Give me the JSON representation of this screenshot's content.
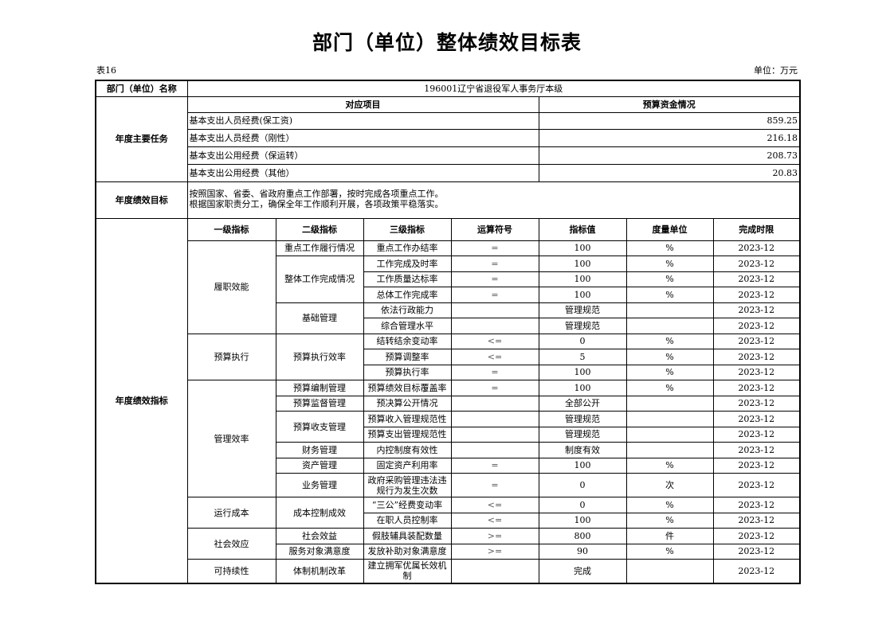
{
  "title": "部门（单位）整体绩效目标表",
  "table_no": "表16",
  "unit": "单位：万元",
  "dept": {
    "label": "部门（单位）名称",
    "value": "196001辽宁省退役军人事务厅本级"
  },
  "tasks": {
    "label": "年度主要任务",
    "col_item": "对应项目",
    "col_budget": "预算资金情况",
    "rows": [
      {
        "item": "基本支出人员经费(保工资)",
        "amount": "859.25"
      },
      {
        "item": "基本支出人员经费（刚性）",
        "amount": "216.18"
      },
      {
        "item": "基本支出公用经费（保运转）",
        "amount": "208.73"
      },
      {
        "item": "基本支出公用经费（其他）",
        "amount": "20.83"
      }
    ]
  },
  "goal": {
    "label": "年度绩效目标",
    "lines": [
      "按照国家、省委、省政府重点工作部署，按时完成各项重点工作。",
      "根据国家职责分工，确保全年工作顺利开展，各项政策平稳落实。"
    ]
  },
  "indicators": {
    "label": "年度绩效指标",
    "headers": [
      "一级指标",
      "二级指标",
      "三级指标",
      "运算符号",
      "指标值",
      "度量单位",
      "完成时限"
    ],
    "groups": [
      {
        "label": "履职效能",
        "subgroups": [
          {
            "label": "重点工作履行情况",
            "items": [
              {
                "name": "重点工作办结率",
                "op": "=",
                "value": "100",
                "unit": "%",
                "date": "2023-12"
              }
            ]
          },
          {
            "label": "整体工作完成情况",
            "items": [
              {
                "name": "工作完成及时率",
                "op": "=",
                "value": "100",
                "unit": "%",
                "date": "2023-12"
              },
              {
                "name": "工作质量达标率",
                "op": "=",
                "value": "100",
                "unit": "%",
                "date": "2023-12"
              },
              {
                "name": "总体工作完成率",
                "op": "=",
                "value": "100",
                "unit": "%",
                "date": "2023-12"
              }
            ]
          },
          {
            "label": "基础管理",
            "items": [
              {
                "name": "依法行政能力",
                "op": "",
                "value": "管理规范",
                "unit": "",
                "date": "2023-12"
              },
              {
                "name": "综合管理水平",
                "op": "",
                "value": "管理规范",
                "unit": "",
                "date": "2023-12"
              }
            ]
          }
        ]
      },
      {
        "label": "预算执行",
        "subgroups": [
          {
            "label": "预算执行效率",
            "items": [
              {
                "name": "结转结余变动率",
                "op": "<=",
                "value": "0",
                "unit": "%",
                "date": "2023-12"
              },
              {
                "name": "预算调整率",
                "op": "<=",
                "value": "5",
                "unit": "%",
                "date": "2023-12"
              },
              {
                "name": "预算执行率",
                "op": "=",
                "value": "100",
                "unit": "%",
                "date": "2023-12"
              }
            ]
          }
        ]
      },
      {
        "label": "管理效率",
        "subgroups": [
          {
            "label": "预算编制管理",
            "items": [
              {
                "name": "预算绩效目标覆盖率",
                "op": "=",
                "value": "100",
                "unit": "%",
                "date": "2023-12"
              }
            ]
          },
          {
            "label": "预算监督管理",
            "items": [
              {
                "name": "预决算公开情况",
                "op": "",
                "value": "全部公开",
                "unit": "",
                "date": "2023-12"
              }
            ]
          },
          {
            "label": "预算收支管理",
            "items": [
              {
                "name": "预算收入管理规范性",
                "op": "",
                "value": "管理规范",
                "unit": "",
                "date": "2023-12"
              },
              {
                "name": "预算支出管理规范性",
                "op": "",
                "value": "管理规范",
                "unit": "",
                "date": "2023-12"
              }
            ]
          },
          {
            "label": "财务管理",
            "items": [
              {
                "name": "内控制度有效性",
                "op": "",
                "value": "制度有效",
                "unit": "",
                "date": "2023-12"
              }
            ]
          },
          {
            "label": "资产管理",
            "items": [
              {
                "name": "固定资产利用率",
                "op": "=",
                "value": "100",
                "unit": "%",
                "date": "2023-12"
              }
            ]
          },
          {
            "label": "业务管理",
            "items": [
              {
                "name": "政府采购管理违法违规行为发生次数",
                "op": "=",
                "value": "0",
                "unit": "次",
                "date": "2023-12",
                "tall": true
              }
            ]
          }
        ]
      },
      {
        "label": "运行成本",
        "subgroups": [
          {
            "label": "成本控制成效",
            "items": [
              {
                "name": "“三公”经费变动率",
                "op": "<=",
                "value": "0",
                "unit": "%",
                "date": "2023-12"
              },
              {
                "name": "在职人员控制率",
                "op": "<=",
                "value": "100",
                "unit": "%",
                "date": "2023-12"
              }
            ]
          }
        ]
      },
      {
        "label": "社会效应",
        "subgroups": [
          {
            "label": "社会效益",
            "items": [
              {
                "name": "假肢辅具装配数量",
                "op": ">=",
                "value": "800",
                "unit": "件",
                "date": "2023-12"
              }
            ]
          },
          {
            "label": "服务对象满意度",
            "items": [
              {
                "name": "发放补助对象满意度",
                "op": ">=",
                "value": "90",
                "unit": "%",
                "date": "2023-12"
              }
            ]
          }
        ]
      },
      {
        "label": "可持续性",
        "subgroups": [
          {
            "label": "体制机制改革",
            "items": [
              {
                "name": "建立拥军优属长效机制",
                "op": "",
                "value": "完成",
                "unit": "",
                "date": "2023-12",
                "tall": true
              }
            ]
          }
        ]
      }
    ]
  }
}
